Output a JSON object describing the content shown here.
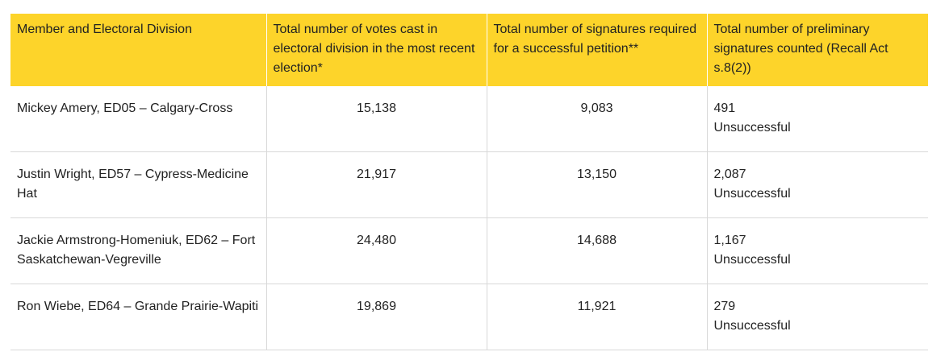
{
  "table": {
    "headers": [
      "Member and Electoral Division",
      "Total number of votes cast in electoral division in the most recent election*",
      "Total number of signatures required for a successful petition**",
      "Total number of preliminary signatures counted (Recall Act s.8(2))"
    ],
    "rows": [
      {
        "member": "Mickey Amery, ED05 – Calgary-Cross",
        "votes": "15,138",
        "required": "9,083",
        "counted": "491",
        "result": "Unsuccessful"
      },
      {
        "member": "Justin Wright, ED57 – Cypress-Medicine Hat",
        "votes": "21,917",
        "required": "13,150",
        "counted": "2,087",
        "result": "Unsuccessful"
      },
      {
        "member": "Jackie Armstrong-Homeniuk, ED62 – Fort Saskatchewan-Vegreville",
        "votes": "24,480",
        "required": "14,688",
        "counted": "1,167",
        "result": "Unsuccessful"
      },
      {
        "member": "Ron Wiebe, ED64 – Grande Prairie-Wapiti",
        "votes": "19,869",
        "required": "11,921",
        "counted": "279",
        "result": "Unsuccessful"
      }
    ]
  }
}
